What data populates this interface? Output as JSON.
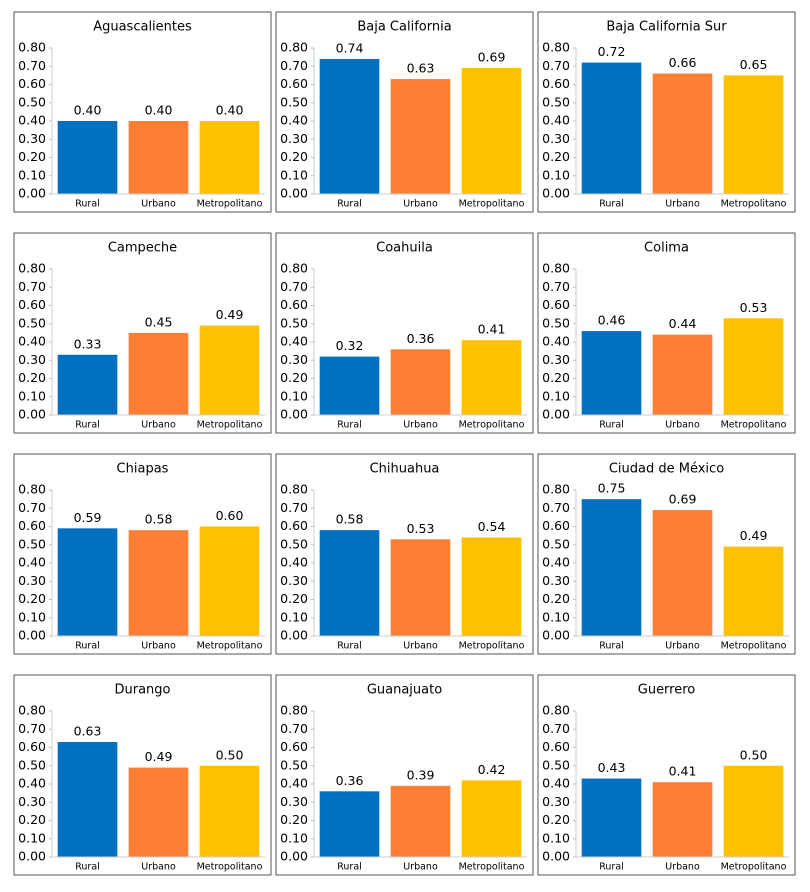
{
  "chart_data": [
    {
      "type": "bar",
      "title": "Aguascalientes",
      "categories": [
        "Rural",
        "Urbano",
        "Metropolitano"
      ],
      "values": [
        0.4,
        0.4,
        0.4
      ],
      "value_labels": [
        "0.40",
        "0.40",
        "0.40"
      ],
      "colors": [
        "#0070c0",
        "#fd7f35",
        "#ffc000"
      ],
      "ylim": [
        0,
        0.8
      ],
      "yticks": [
        {
          "value": 0,
          "label": "0.00"
        },
        {
          "value": 0.1,
          "label": "0.10"
        },
        {
          "value": 0.2,
          "label": "0.20"
        },
        {
          "value": 0.3,
          "label": "0.30"
        },
        {
          "value": 0.4,
          "label": "0.40"
        },
        {
          "value": 0.5,
          "label": "0.50"
        },
        {
          "value": 0.6,
          "label": "0.60"
        },
        {
          "value": 0.7,
          "label": "0.70"
        },
        {
          "value": 0.8,
          "label": "0.80"
        }
      ]
    },
    {
      "type": "bar",
      "title": "Baja California",
      "categories": [
        "Rural",
        "Urbano",
        "Metropolitano"
      ],
      "values": [
        0.74,
        0.63,
        0.69
      ],
      "value_labels": [
        "0.74",
        "0.63",
        "0.69"
      ],
      "colors": [
        "#0070c0",
        "#fd7f35",
        "#ffc000"
      ],
      "ylim": [
        0,
        0.8
      ],
      "yticks": [
        {
          "value": 0,
          "label": "0.00"
        },
        {
          "value": 0.1,
          "label": "0.10"
        },
        {
          "value": 0.2,
          "label": "0.20"
        },
        {
          "value": 0.3,
          "label": "0.30"
        },
        {
          "value": 0.4,
          "label": "0.40"
        },
        {
          "value": 0.5,
          "label": "0.50"
        },
        {
          "value": 0.6,
          "label": "0.60"
        },
        {
          "value": 0.7,
          "label": "0.70"
        },
        {
          "value": 0.8,
          "label": "0.80"
        }
      ]
    },
    {
      "type": "bar",
      "title": "Baja California Sur",
      "categories": [
        "Rural",
        "Urbano",
        "Metropolitano"
      ],
      "values": [
        0.72,
        0.66,
        0.65
      ],
      "value_labels": [
        "0.72",
        "0.66",
        "0.65"
      ],
      "colors": [
        "#0070c0",
        "#fd7f35",
        "#ffc000"
      ],
      "ylim": [
        0,
        0.8
      ],
      "yticks": [
        {
          "value": 0,
          "label": "0.00"
        },
        {
          "value": 0.1,
          "label": "0.10"
        },
        {
          "value": 0.2,
          "label": "0.20"
        },
        {
          "value": 0.3,
          "label": "0.30"
        },
        {
          "value": 0.4,
          "label": "0.40"
        },
        {
          "value": 0.5,
          "label": "0.50"
        },
        {
          "value": 0.6,
          "label": "0.60"
        },
        {
          "value": 0.7,
          "label": "0.70"
        },
        {
          "value": 0.8,
          "label": "0.80"
        }
      ]
    },
    {
      "type": "bar",
      "title": "Campeche",
      "categories": [
        "Rural",
        "Urbano",
        "Metropolitano"
      ],
      "values": [
        0.33,
        0.45,
        0.49
      ],
      "value_labels": [
        "0.33",
        "0.45",
        "0.49"
      ],
      "colors": [
        "#0070c0",
        "#fd7f35",
        "#ffc000"
      ],
      "ylim": [
        0,
        0.8
      ],
      "yticks": [
        {
          "value": 0,
          "label": "0.00"
        },
        {
          "value": 0.1,
          "label": "0.10"
        },
        {
          "value": 0.2,
          "label": "0.20"
        },
        {
          "value": 0.3,
          "label": "0.30"
        },
        {
          "value": 0.4,
          "label": "0.40"
        },
        {
          "value": 0.5,
          "label": "0.50"
        },
        {
          "value": 0.6,
          "label": "0.60"
        },
        {
          "value": 0.7,
          "label": "0.70"
        },
        {
          "value": 0.8,
          "label": "0.80"
        }
      ]
    },
    {
      "type": "bar",
      "title": "Coahuila",
      "categories": [
        "Rural",
        "Urbano",
        "Metropolitano"
      ],
      "values": [
        0.32,
        0.36,
        0.41
      ],
      "value_labels": [
        "0.32",
        "0.36",
        "0.41"
      ],
      "colors": [
        "#0070c0",
        "#fd7f35",
        "#ffc000"
      ],
      "ylim": [
        0,
        0.8
      ],
      "yticks": [
        {
          "value": 0,
          "label": "0.00"
        },
        {
          "value": 0.1,
          "label": "0.10"
        },
        {
          "value": 0.2,
          "label": "0.20"
        },
        {
          "value": 0.3,
          "label": "0.30"
        },
        {
          "value": 0.4,
          "label": "0.40"
        },
        {
          "value": 0.5,
          "label": "0.50"
        },
        {
          "value": 0.6,
          "label": "0.60"
        },
        {
          "value": 0.7,
          "label": "0.70"
        },
        {
          "value": 0.8,
          "label": "0.80"
        }
      ]
    },
    {
      "type": "bar",
      "title": "Colima",
      "categories": [
        "Rural",
        "Urbano",
        "Metropolitano"
      ],
      "values": [
        0.46,
        0.44,
        0.53
      ],
      "value_labels": [
        "0.46",
        "0.44",
        "0.53"
      ],
      "colors": [
        "#0070c0",
        "#fd7f35",
        "#ffc000"
      ],
      "ylim": [
        0,
        0.8
      ],
      "yticks": [
        {
          "value": 0,
          "label": "0.00"
        },
        {
          "value": 0.1,
          "label": "0.10"
        },
        {
          "value": 0.2,
          "label": "0.20"
        },
        {
          "value": 0.3,
          "label": "0.30"
        },
        {
          "value": 0.4,
          "label": "0.40"
        },
        {
          "value": 0.5,
          "label": "0.50"
        },
        {
          "value": 0.6,
          "label": "0.60"
        },
        {
          "value": 0.7,
          "label": "0.70"
        },
        {
          "value": 0.8,
          "label": "0.80"
        }
      ]
    },
    {
      "type": "bar",
      "title": "Chiapas",
      "categories": [
        "Rural",
        "Urbano",
        "Metropolitano"
      ],
      "values": [
        0.59,
        0.58,
        0.6
      ],
      "value_labels": [
        "0.59",
        "0.58",
        "0.60"
      ],
      "colors": [
        "#0070c0",
        "#fd7f35",
        "#ffc000"
      ],
      "ylim": [
        0,
        0.8
      ],
      "yticks": [
        {
          "value": 0,
          "label": "0.00"
        },
        {
          "value": 0.1,
          "label": "0.10"
        },
        {
          "value": 0.2,
          "label": "0.20"
        },
        {
          "value": 0.3,
          "label": "0.30"
        },
        {
          "value": 0.4,
          "label": "0.40"
        },
        {
          "value": 0.5,
          "label": "0.50"
        },
        {
          "value": 0.6,
          "label": "0.60"
        },
        {
          "value": 0.7,
          "label": "0.70"
        },
        {
          "value": 0.8,
          "label": "0.80"
        }
      ]
    },
    {
      "type": "bar",
      "title": "Chihuahua",
      "categories": [
        "Rural",
        "Urbano",
        "Metropolitano"
      ],
      "values": [
        0.58,
        0.53,
        0.54
      ],
      "value_labels": [
        "0.58",
        "0.53",
        "0.54"
      ],
      "colors": [
        "#0070c0",
        "#fd7f35",
        "#ffc000"
      ],
      "ylim": [
        0,
        0.8
      ],
      "yticks": [
        {
          "value": 0,
          "label": "0.00"
        },
        {
          "value": 0.1,
          "label": "0.10"
        },
        {
          "value": 0.2,
          "label": "0.20"
        },
        {
          "value": 0.3,
          "label": "0.30"
        },
        {
          "value": 0.4,
          "label": "0.40"
        },
        {
          "value": 0.5,
          "label": "0.50"
        },
        {
          "value": 0.6,
          "label": "0.60"
        },
        {
          "value": 0.7,
          "label": "0.70"
        },
        {
          "value": 0.8,
          "label": "0.80"
        }
      ]
    },
    {
      "type": "bar",
      "title": "Ciudad de México",
      "categories": [
        "Rural",
        "Urbano",
        "Metropolitano"
      ],
      "values": [
        0.75,
        0.69,
        0.49
      ],
      "value_labels": [
        "0.75",
        "0.69",
        "0.49"
      ],
      "colors": [
        "#0070c0",
        "#fd7f35",
        "#ffc000"
      ],
      "ylim": [
        0,
        0.8
      ],
      "yticks": [
        {
          "value": 0,
          "label": "0.00"
        },
        {
          "value": 0.1,
          "label": "0.10"
        },
        {
          "value": 0.2,
          "label": "0.20"
        },
        {
          "value": 0.3,
          "label": "0.30"
        },
        {
          "value": 0.4,
          "label": "0.40"
        },
        {
          "value": 0.5,
          "label": "0.50"
        },
        {
          "value": 0.6,
          "label": "0.60"
        },
        {
          "value": 0.7,
          "label": "0.70"
        },
        {
          "value": 0.8,
          "label": "0.80"
        }
      ]
    },
    {
      "type": "bar",
      "title": "Durango",
      "categories": [
        "Rural",
        "Urbano",
        "Metropolitano"
      ],
      "values": [
        0.63,
        0.49,
        0.5
      ],
      "value_labels": [
        "0.63",
        "0.49",
        "0.50"
      ],
      "colors": [
        "#0070c0",
        "#fd7f35",
        "#ffc000"
      ],
      "ylim": [
        0,
        0.8
      ],
      "yticks": [
        {
          "value": 0,
          "label": "0.00"
        },
        {
          "value": 0.1,
          "label": "0.10"
        },
        {
          "value": 0.2,
          "label": "0.20"
        },
        {
          "value": 0.3,
          "label": "0.30"
        },
        {
          "value": 0.4,
          "label": "0.40"
        },
        {
          "value": 0.5,
          "label": "0.50"
        },
        {
          "value": 0.6,
          "label": "0.60"
        },
        {
          "value": 0.7,
          "label": "0.70"
        },
        {
          "value": 0.8,
          "label": "0.80"
        }
      ]
    },
    {
      "type": "bar",
      "title": "Guanajuato",
      "categories": [
        "Rural",
        "Urbano",
        "Metropolitano"
      ],
      "values": [
        0.36,
        0.39,
        0.42
      ],
      "value_labels": [
        "0.36",
        "0.39",
        "0.42"
      ],
      "colors": [
        "#0070c0",
        "#fd7f35",
        "#ffc000"
      ],
      "ylim": [
        0,
        0.8
      ],
      "yticks": [
        {
          "value": 0,
          "label": "0.00"
        },
        {
          "value": 0.1,
          "label": "0.10"
        },
        {
          "value": 0.2,
          "label": "0.20"
        },
        {
          "value": 0.3,
          "label": "0.30"
        },
        {
          "value": 0.4,
          "label": "0.40"
        },
        {
          "value": 0.5,
          "label": "0.50"
        },
        {
          "value": 0.6,
          "label": "0.60"
        },
        {
          "value": 0.7,
          "label": "0.70"
        },
        {
          "value": 0.8,
          "label": "0.80"
        }
      ]
    },
    {
      "type": "bar",
      "title": "Guerrero",
      "categories": [
        "Rural",
        "Urbano",
        "Metropolitano"
      ],
      "values": [
        0.43,
        0.41,
        0.5
      ],
      "value_labels": [
        "0.43",
        "0.41",
        "0.50"
      ],
      "colors": [
        "#0070c0",
        "#fd7f35",
        "#ffc000"
      ],
      "ylim": [
        0,
        0.8
      ],
      "yticks": [
        {
          "value": 0,
          "label": "0.00"
        },
        {
          "value": 0.1,
          "label": "0.10"
        },
        {
          "value": 0.2,
          "label": "0.20"
        },
        {
          "value": 0.3,
          "label": "0.30"
        },
        {
          "value": 0.4,
          "label": "0.40"
        },
        {
          "value": 0.5,
          "label": "0.50"
        },
        {
          "value": 0.6,
          "label": "0.60"
        },
        {
          "value": 0.7,
          "label": "0.70"
        },
        {
          "value": 0.8,
          "label": "0.80"
        }
      ]
    }
  ]
}
